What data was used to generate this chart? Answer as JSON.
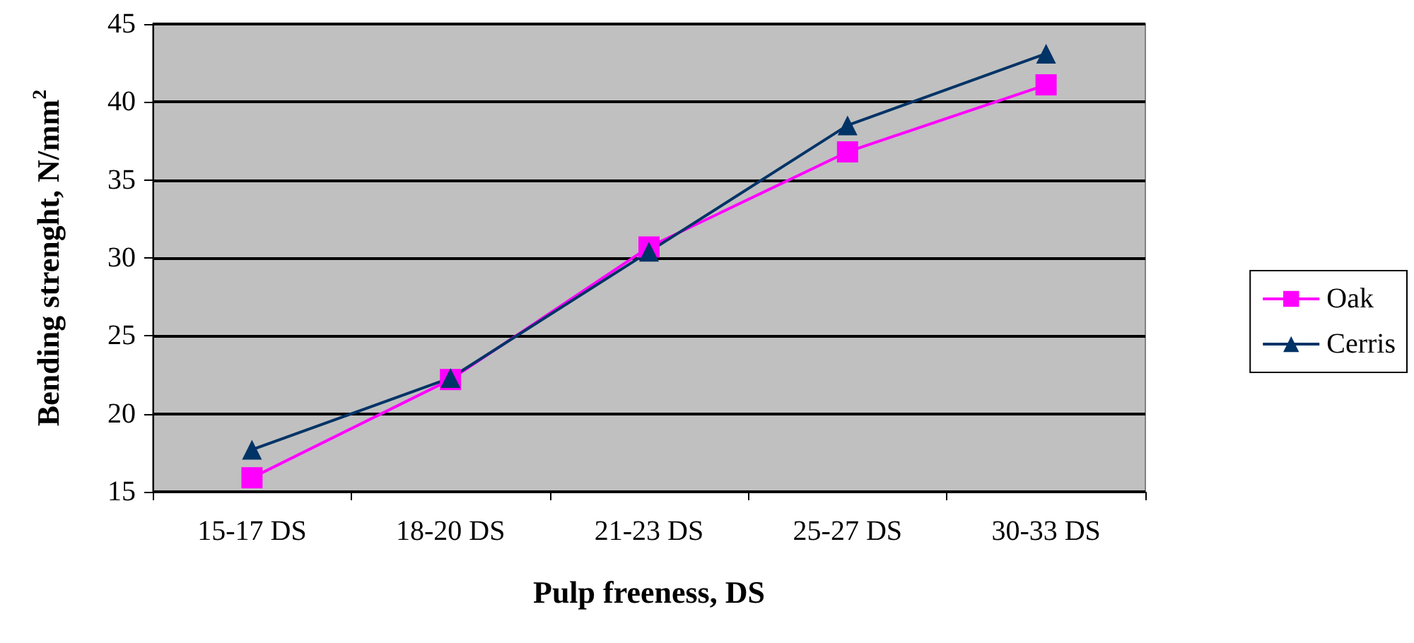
{
  "chart_data": {
    "type": "line",
    "xlabel": "Pulp freeness, DS",
    "ylabel": "Bending strenght, N/mm$^{2}$",
    "categories": [
      "15-17 DS",
      "18-20 DS",
      "21-23 DS",
      "25-27 DS",
      "30-33 DS"
    ],
    "series": [
      {
        "name": "Oak",
        "color": "#ff00ff",
        "marker": "square",
        "values": [
          15.9,
          22.2,
          30.7,
          36.8,
          41.1
        ]
      },
      {
        "name": "Cerris",
        "color": "#003366",
        "marker": "triangle",
        "values": [
          17.7,
          22.3,
          30.4,
          38.5,
          43.1
        ]
      }
    ],
    "ylim": [
      15,
      45
    ],
    "yticks": [
      15,
      20,
      25,
      30,
      35,
      40,
      45
    ],
    "grid": "y",
    "legend": "right"
  }
}
